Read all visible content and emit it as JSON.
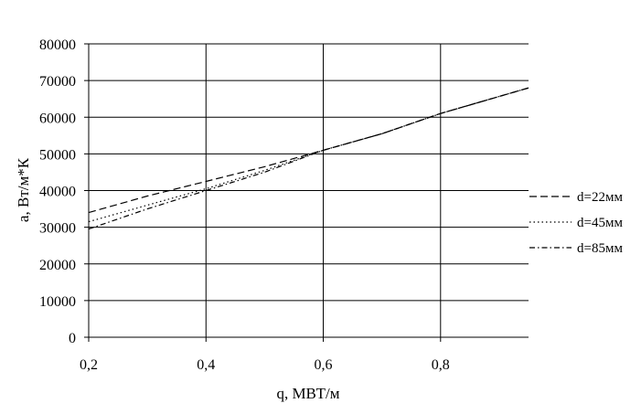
{
  "chart_data": {
    "type": "line",
    "title": "",
    "xlabel": "q, МВТ/м",
    "ylabel": "a, Вт/м*К",
    "xlim": [
      0.2,
      0.95
    ],
    "ylim": [
      0,
      80000
    ],
    "x_ticks": [
      0.2,
      0.4,
      0.6,
      0.8
    ],
    "x_tick_labels": [
      "0,2",
      "0,4",
      "0,6",
      "0,8"
    ],
    "y_ticks": [
      0,
      10000,
      20000,
      30000,
      40000,
      50000,
      60000,
      70000,
      80000
    ],
    "y_tick_labels": [
      "0",
      "10000",
      "20000",
      "30000",
      "40000",
      "50000",
      "60000",
      "70000",
      "80000"
    ],
    "grid": true,
    "legend_position": "right",
    "series": [
      {
        "name": "d=22мм",
        "dash": "8,4",
        "x": [
          0.2,
          0.3,
          0.4,
          0.5,
          0.6,
          0.7,
          0.8,
          0.95
        ],
        "y": [
          34000,
          38500,
          42500,
          46500,
          51000,
          55500,
          61000,
          68000
        ]
      },
      {
        "name": "d=45мм",
        "dash": "1.5,3",
        "x": [
          0.2,
          0.3,
          0.4,
          0.5,
          0.6,
          0.7,
          0.8,
          0.95
        ],
        "y": [
          31500,
          36000,
          40500,
          45500,
          51000,
          55500,
          61000,
          68000
        ]
      },
      {
        "name": "d=85мм",
        "dash": "6,3,1.5,3",
        "x": [
          0.2,
          0.3,
          0.4,
          0.5,
          0.6,
          0.7,
          0.8,
          0.95
        ],
        "y": [
          29500,
          35000,
          40000,
          45000,
          51000,
          55500,
          61000,
          68000
        ]
      }
    ]
  }
}
